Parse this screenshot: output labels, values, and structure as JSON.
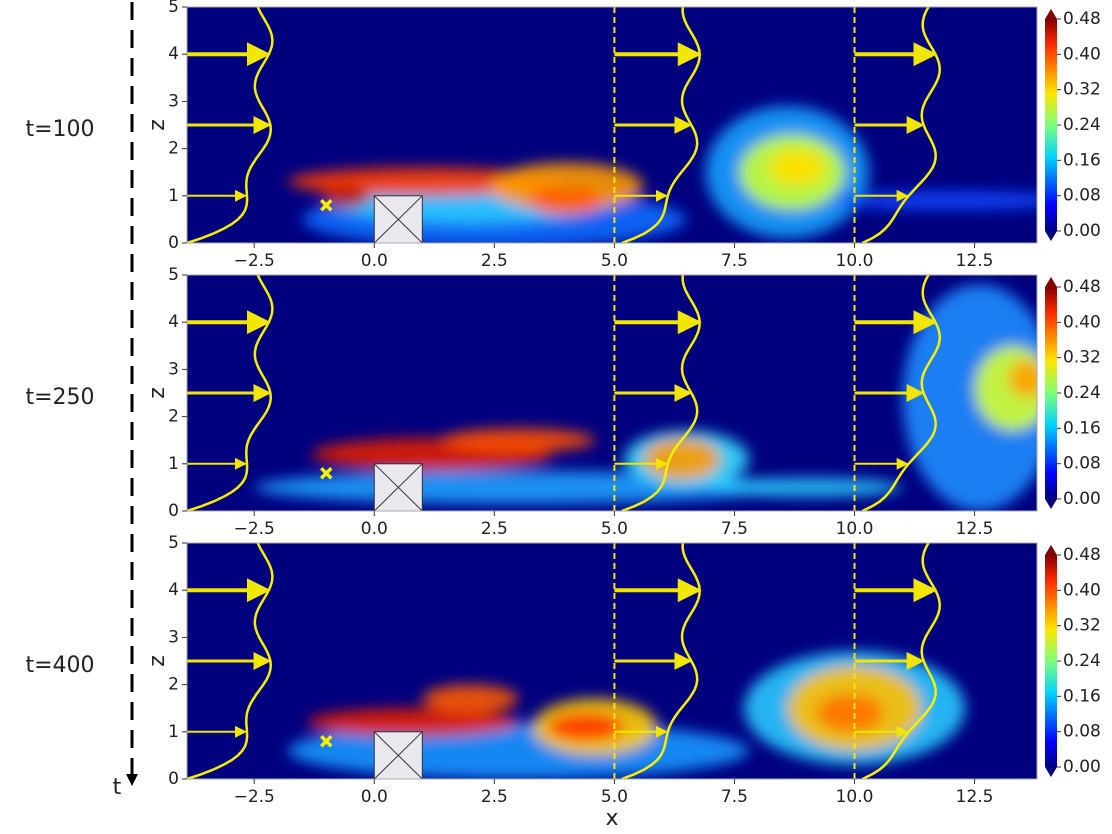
{
  "chart_data": [
    {
      "type": "heatmap",
      "title": "t=100",
      "ylabel": "z",
      "colormap": "jet",
      "xlim": [
        -3.9,
        13.8
      ],
      "ylim": [
        0,
        5
      ],
      "xticks": [
        {
          "value": -2.5,
          "label": "−2.5"
        },
        {
          "value": 0,
          "label": "0.0"
        },
        2.5,
        {
          "value": 5,
          "label": "5.0"
        },
        7.5,
        {
          "value": 10,
          "label": "10.0"
        },
        12.5
      ],
      "yticks": [
        0,
        1,
        2,
        3,
        4,
        5
      ],
      "clim": [
        0,
        0.48
      ],
      "cticks": [
        {
          "value": 0,
          "label": "0.00"
        },
        0.08,
        0.16,
        0.24,
        0.32,
        {
          "value": 0.4,
          "label": "0.40"
        },
        0.48
      ],
      "reference_x": [
        5,
        10
      ],
      "arrow_z": [
        1,
        2.5,
        4
      ],
      "obstacle_x": [
        0,
        1
      ],
      "obstacle_z": [
        0,
        1
      ],
      "source": [
        -1,
        0.8
      ]
    },
    {
      "type": "heatmap",
      "title": "t=250",
      "ylabel": "z",
      "colormap": "jet",
      "xlim": [
        -3.9,
        13.8
      ],
      "ylim": [
        0,
        5
      ],
      "xticks": [
        {
          "value": -2.5,
          "label": "−2.5"
        },
        {
          "value": 0,
          "label": "0.0"
        },
        2.5,
        {
          "value": 5,
          "label": "5.0"
        },
        7.5,
        {
          "value": 10,
          "label": "10.0"
        },
        12.5
      ],
      "yticks": [
        0,
        1,
        2,
        3,
        4,
        5
      ],
      "clim": [
        0,
        0.48
      ],
      "cticks": [
        {
          "value": 0,
          "label": "0.00"
        },
        0.08,
        0.16,
        0.24,
        0.32,
        {
          "value": 0.4,
          "label": "0.40"
        },
        0.48
      ],
      "reference_x": [
        5,
        10
      ],
      "arrow_z": [
        1,
        2.5,
        4
      ],
      "obstacle_x": [
        0,
        1
      ],
      "obstacle_z": [
        0,
        1
      ],
      "source": [
        -1,
        0.8
      ]
    },
    {
      "type": "heatmap",
      "title": "t=400",
      "ylabel": "z",
      "xlabel": "x",
      "timelabel": "t",
      "colormap": "jet",
      "xlim": [
        -3.9,
        13.8
      ],
      "ylim": [
        0,
        5
      ],
      "xticks": [
        {
          "value": -2.5,
          "label": "−2.5"
        },
        {
          "value": 0,
          "label": "0.0"
        },
        2.5,
        {
          "value": 5,
          "label": "5.0"
        },
        7.5,
        {
          "value": 10,
          "label": "10.0"
        },
        12.5
      ],
      "yticks": [
        0,
        1,
        2,
        3,
        4,
        5
      ],
      "clim": [
        0,
        0.48
      ],
      "cticks": [
        {
          "value": 0,
          "label": "0.00"
        },
        0.08,
        0.16,
        0.24,
        0.32,
        {
          "value": 0.4,
          "label": "0.40"
        },
        0.48
      ],
      "reference_x": [
        5,
        10
      ],
      "arrow_z": [
        1,
        2.5,
        4
      ],
      "obstacle_x": [
        0,
        1
      ],
      "obstacle_z": [
        0,
        1
      ],
      "source": [
        -1,
        0.8
      ]
    }
  ]
}
